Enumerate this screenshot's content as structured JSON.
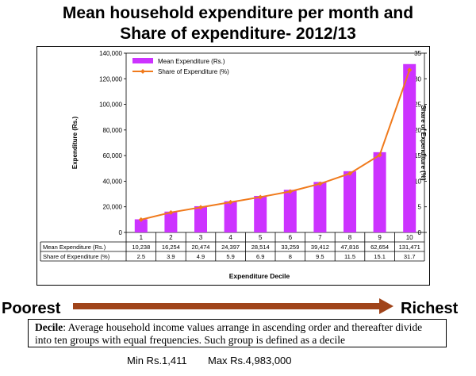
{
  "title_line1": "Mean household expenditure per month and",
  "title_line2": "Share of expenditure- 2012/13",
  "chart_data": {
    "type": "bar",
    "categories": [
      "1",
      "2",
      "3",
      "4",
      "5",
      "6",
      "7",
      "8",
      "9",
      "10"
    ],
    "series": [
      {
        "name": "Mean Expenditure (Rs.)",
        "type": "bar",
        "axis": "left",
        "color": "#CC33FF",
        "values": [
          10238,
          16254,
          20474,
          24397,
          28514,
          33259,
          39412,
          47816,
          62654,
          131471
        ]
      },
      {
        "name": "Share of Expenditure (%)",
        "type": "line",
        "axis": "right",
        "color": "#F07A1C",
        "values": [
          2.5,
          3.9,
          4.9,
          5.9,
          6.9,
          8,
          9.5,
          11.5,
          15.1,
          31.7
        ]
      }
    ],
    "table_rows": [
      {
        "label": "Mean Expenditure (Rs.)",
        "values": [
          "10,238",
          "16,254",
          "20,474",
          "24,397",
          "28,514",
          "33,259",
          "39,412",
          "47,816",
          "62,654",
          "131,471"
        ]
      },
      {
        "label": "Share of Expenditure (%)",
        "values": [
          "2.5",
          "3.9",
          "4.9",
          "5.9",
          "6.9",
          "8",
          "9.5",
          "11.5",
          "15.1",
          "31.7"
        ]
      }
    ],
    "ylabel": "Expenditure (Rs.)",
    "y2label": "Share of Expenditure (%)",
    "xlabel": "Expenditure Decile",
    "ylim": [
      0,
      140000
    ],
    "y2lim": [
      0,
      35
    ],
    "yticks": [
      "0",
      "20,000",
      "40,000",
      "60,000",
      "80,000",
      "100,000",
      "120,000",
      "140,000"
    ],
    "y2ticks": [
      "0",
      "5",
      "10",
      "15",
      "20",
      "25",
      "30",
      "35"
    ],
    "legend_position": "top-left",
    "grid": false
  },
  "arrow": {
    "left_label": "Poorest",
    "right_label": "Richest",
    "color": "#A0441A"
  },
  "note": {
    "term": "Decile",
    "text": ": Average household income  values arrange in ascending order and thereafter divide into ten groups with equal frequencies. Such group is defined as a decile"
  },
  "min_label": "Min Rs.1,411",
  "max_label": "Max Rs.4,983,000"
}
